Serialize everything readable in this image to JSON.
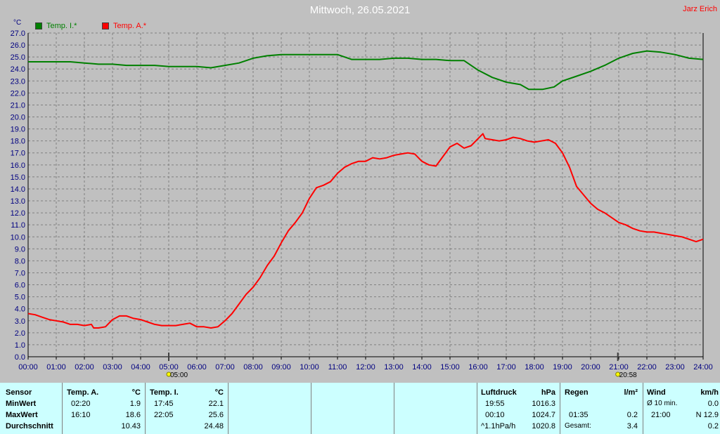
{
  "title": "Mittwoch, 26.05.2021",
  "author": "Jarz Erich",
  "colors": {
    "series_inside": "#008000",
    "series_outside": "#ff0000",
    "grid": "#808080",
    "plot_bg": "#c0c0c0",
    "table_bg": "#ccffff"
  },
  "chart_data": {
    "type": "line",
    "ylabel": "°C",
    "xlim": [
      0,
      24
    ],
    "ylim": [
      0.0,
      27.0
    ],
    "y_ticks": [
      "0.0",
      "1.0",
      "2.0",
      "3.0",
      "4.0",
      "5.0",
      "6.0",
      "7.0",
      "8.0",
      "9.0",
      "10.0",
      "11.0",
      "12.0",
      "13.0",
      "14.0",
      "15.0",
      "16.0",
      "17.0",
      "18.0",
      "19.0",
      "20.0",
      "21.0",
      "22.0",
      "23.0",
      "24.0",
      "25.0",
      "26.0",
      "27.0"
    ],
    "x_ticks": [
      "00:00",
      "01:00",
      "02:00",
      "03:00",
      "04:00",
      "05:00",
      "06:00",
      "07:00",
      "08:00",
      "09:00",
      "10:00",
      "11:00",
      "12:00",
      "13:00",
      "14:00",
      "15:00",
      "16:00",
      "17:00",
      "18:00",
      "19:00",
      "20:00",
      "21:00",
      "22:00",
      "23:00",
      "24:00"
    ],
    "grid": true,
    "legend_position": "top-left",
    "markers": [
      {
        "label": "05:00",
        "hour": 5.0,
        "icon": "sunrise-icon"
      },
      {
        "label": "20:58",
        "hour": 20.967,
        "icon": "sunset-icon"
      }
    ],
    "series": [
      {
        "name": "Temp. I.*",
        "color": "#008000",
        "x": [
          0,
          0.5,
          1,
          1.5,
          2,
          2.5,
          3,
          3.5,
          4,
          4.5,
          5,
          5.5,
          6,
          6.5,
          7,
          7.5,
          8,
          8.5,
          9,
          9.5,
          10,
          10.5,
          11,
          11.5,
          12,
          12.5,
          13,
          13.5,
          14,
          14.5,
          15,
          15.5,
          16,
          16.5,
          17,
          17.5,
          17.8,
          18.3,
          18.7,
          19,
          19.5,
          20,
          20.5,
          21,
          21.5,
          22,
          22.5,
          23,
          23.5,
          24
        ],
        "y": [
          24.6,
          24.6,
          24.6,
          24.6,
          24.5,
          24.4,
          24.4,
          24.3,
          24.3,
          24.3,
          24.2,
          24.2,
          24.2,
          24.1,
          24.3,
          24.5,
          24.9,
          25.1,
          25.2,
          25.2,
          25.2,
          25.2,
          25.2,
          24.8,
          24.8,
          24.8,
          24.9,
          24.9,
          24.8,
          24.8,
          24.7,
          24.7,
          23.9,
          23.3,
          22.9,
          22.7,
          22.3,
          22.3,
          22.5,
          23.0,
          23.4,
          23.8,
          24.3,
          24.9,
          25.3,
          25.5,
          25.4,
          25.2,
          24.9,
          24.8
        ]
      },
      {
        "name": "Temp. A.*",
        "color": "#ff0000",
        "x": [
          0,
          0.25,
          0.5,
          0.75,
          1,
          1.25,
          1.5,
          1.75,
          2,
          2.25,
          2.33,
          2.5,
          2.75,
          3,
          3.25,
          3.5,
          3.75,
          4,
          4.25,
          4.5,
          4.75,
          5,
          5.25,
          5.5,
          5.75,
          6,
          6.25,
          6.5,
          6.75,
          7,
          7.25,
          7.5,
          7.75,
          8,
          8.25,
          8.5,
          8.75,
          9,
          9.25,
          9.5,
          9.75,
          10,
          10.25,
          10.5,
          10.75,
          11,
          11.25,
          11.5,
          11.75,
          12,
          12.25,
          12.5,
          12.75,
          13,
          13.25,
          13.5,
          13.75,
          14,
          14.25,
          14.5,
          14.75,
          15,
          15.25,
          15.5,
          15.75,
          16,
          16.17,
          16.25,
          16.5,
          16.75,
          17,
          17.25,
          17.5,
          17.75,
          18,
          18.25,
          18.5,
          18.75,
          19,
          19.25,
          19.5,
          19.75,
          20,
          20.25,
          20.5,
          20.75,
          21,
          21.25,
          21.5,
          21.75,
          22,
          22.25,
          22.5,
          22.75,
          23,
          23.25,
          23.5,
          23.75,
          24
        ],
        "y": [
          3.6,
          3.5,
          3.3,
          3.1,
          3.0,
          2.9,
          2.7,
          2.7,
          2.6,
          2.7,
          2.4,
          2.4,
          2.5,
          3.1,
          3.4,
          3.4,
          3.2,
          3.1,
          2.9,
          2.7,
          2.6,
          2.6,
          2.6,
          2.7,
          2.8,
          2.5,
          2.5,
          2.4,
          2.5,
          3.0,
          3.6,
          4.4,
          5.2,
          5.8,
          6.6,
          7.6,
          8.4,
          9.5,
          10.5,
          11.2,
          12.0,
          13.2,
          14.1,
          14.3,
          14.6,
          15.3,
          15.8,
          16.1,
          16.3,
          16.3,
          16.6,
          16.5,
          16.6,
          16.8,
          16.9,
          17.0,
          16.9,
          16.3,
          16.0,
          15.9,
          16.7,
          17.5,
          17.8,
          17.4,
          17.6,
          18.2,
          18.6,
          18.2,
          18.1,
          18.0,
          18.1,
          18.3,
          18.2,
          18.0,
          17.9,
          18.0,
          18.1,
          17.8,
          17.0,
          15.8,
          14.2,
          13.5,
          12.8,
          12.3,
          12.0,
          11.6,
          11.2,
          11.0,
          10.7,
          10.5,
          10.4,
          10.4,
          10.3,
          10.2,
          10.1,
          10.0,
          9.8,
          9.6,
          9.8
        ]
      }
    ]
  },
  "table": {
    "sensor": {
      "header": "Sensor",
      "rows": [
        "MinWert",
        "MaxWert",
        "Durchschnitt"
      ]
    },
    "temp_a": {
      "header": "Temp. A.",
      "unit": "°C",
      "min_time": "02:20",
      "min_val": "1.9",
      "max_time": "16:10",
      "max_val": "18.6",
      "avg": "10.43"
    },
    "temp_i": {
      "header": "Temp. I.",
      "unit": "°C",
      "min_time": "17:45",
      "min_val": "22.1",
      "max_time": "22:05",
      "max_val": "25.6",
      "avg": "24.48"
    },
    "luftdruck": {
      "header": "Luftdruck",
      "unit": "hPa",
      "min_time": "19:55",
      "min_val": "1016.3",
      "max_time": "00:10",
      "max_val": "1024.7",
      "trend_label": "^1.1hPa/h",
      "trend_val": "1020.8"
    },
    "regen": {
      "header": "Regen",
      "unit": "l/m²",
      "row2_time": "01:35",
      "row2_val": "0.2",
      "total_label": "Gesamt:",
      "total_val": "3.4"
    },
    "wind": {
      "header": "Wind",
      "unit": "km/h",
      "row1_label": "Ø 10 min.",
      "row1_val": "0.0",
      "row2_time": "21:00",
      "row2_val": "N 12.9",
      "row3_val": "0.2"
    }
  }
}
